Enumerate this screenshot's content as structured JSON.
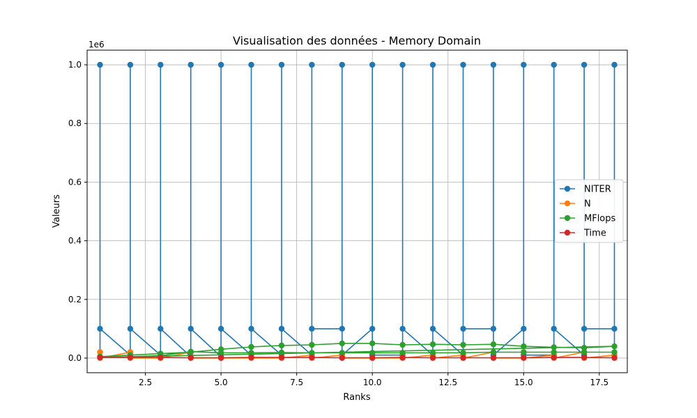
{
  "chart_data": {
    "type": "line",
    "title": "Visualisation des données - Memory Domain",
    "xlabel": "Ranks",
    "ylabel": "Valeurs",
    "y_offset_label": "1e6",
    "xlim": [
      0.575,
      18.425
    ],
    "ylim": [
      -0.05,
      1.05
    ],
    "x_ticks": [
      2.5,
      5.0,
      7.5,
      10.0,
      12.5,
      15.0,
      17.5
    ],
    "x_tick_labels": [
      "2.5",
      "5.0",
      "7.5",
      "10.0",
      "12.5",
      "15.0",
      "17.5"
    ],
    "y_ticks": [
      0.0,
      0.2,
      0.4,
      0.6,
      0.8,
      1.0
    ],
    "y_tick_labels": [
      "0.0",
      "0.2",
      "0.4",
      "0.6",
      "0.8",
      "1.0"
    ],
    "grid": true,
    "legend_position": "center-right",
    "series": [
      {
        "name": "NITER",
        "color": "#1f77b4",
        "x": [
          1,
          1,
          1,
          2,
          2,
          2,
          3,
          3,
          3,
          4,
          4,
          4,
          5,
          5,
          5,
          6,
          6,
          6,
          7,
          7,
          7,
          8,
          8,
          8,
          9,
          9,
          9,
          10,
          10,
          10,
          11,
          11,
          11,
          12,
          12,
          12,
          13,
          13,
          13,
          14,
          14,
          14,
          15,
          15,
          15,
          16,
          16,
          16,
          17,
          17,
          17,
          18,
          18,
          18
        ],
        "y": [
          0.005,
          1.0,
          0.1,
          0.01,
          1.0,
          0.1,
          0.01,
          1.0,
          0.1,
          0.005,
          1.0,
          0.1,
          0.005,
          1.0,
          0.1,
          0.01,
          1.0,
          0.1,
          0.01,
          1.0,
          0.1,
          0.01,
          1.0,
          0.1,
          0.1,
          1.0,
          0.01,
          0.1,
          1.0,
          0.01,
          0.01,
          1.0,
          0.1,
          0.01,
          1.0,
          0.1,
          0.01,
          1.0,
          0.1,
          0.1,
          1.0,
          0.01,
          0.1,
          1.0,
          0.01,
          0.01,
          1.0,
          0.1,
          0.01,
          1.0,
          0.1,
          0.1,
          1.0,
          0.01
        ]
      },
      {
        "name": "N",
        "color": "#ff7f0e",
        "x": [
          1,
          1,
          1,
          2,
          2,
          2,
          3,
          3,
          3,
          4,
          4,
          4,
          5,
          5,
          5,
          6,
          6,
          6,
          7,
          7,
          7,
          8,
          8,
          8,
          9,
          9,
          9,
          10,
          10,
          10,
          11,
          11,
          11,
          12,
          12,
          12,
          13,
          13,
          13,
          14,
          14,
          14,
          15,
          15,
          15,
          16,
          16,
          16,
          17,
          17,
          17,
          18,
          18,
          18
        ],
        "y": [
          0.02,
          0.02,
          0.0,
          0.02,
          0.02,
          0.0,
          0.0,
          0.0,
          0.0,
          0.02,
          0.02,
          0.0,
          0.0,
          0.0,
          0.0,
          0.0,
          0.005,
          0.0,
          0.0,
          0.005,
          0.0,
          0.01,
          0.01,
          0.0,
          0.01,
          0.01,
          0.0,
          0.0,
          0.0,
          0.0,
          0.0,
          0.005,
          0.0,
          0.01,
          0.01,
          0.0,
          0.01,
          0.0,
          0.0,
          0.02,
          0.02,
          0.0,
          0.0,
          0.02,
          0.0,
          0.01,
          0.01,
          0.0,
          0.02,
          0.02,
          0.0,
          0.01,
          0.01,
          0.0
        ]
      },
      {
        "name": "MFlops",
        "color": "#2ca02c",
        "x": [
          1,
          2,
          3,
          4,
          5,
          6,
          7,
          8,
          9,
          10,
          11,
          12,
          13,
          14,
          15,
          16,
          17,
          18,
          1,
          2,
          3,
          4,
          5,
          6,
          7,
          8,
          9,
          10,
          11,
          12,
          13,
          14,
          15,
          16,
          17,
          18
        ],
        "y": [
          0.005,
          0.01,
          0.015,
          0.02,
          0.03,
          0.038,
          0.043,
          0.045,
          0.05,
          0.05,
          0.045,
          0.047,
          0.045,
          0.047,
          0.04,
          0.037,
          0.035,
          0.04,
          0.002,
          0.005,
          0.008,
          0.022,
          0.018,
          0.018,
          0.019,
          0.018,
          0.018,
          0.018,
          0.018,
          0.018,
          0.018,
          0.02,
          0.02,
          0.02,
          0.02,
          0.02
        ]
      },
      {
        "name": "Time",
        "color": "#d62728",
        "x": [
          1,
          2,
          3,
          4,
          5,
          6,
          7,
          8,
          9,
          10,
          11,
          12,
          13,
          14,
          15,
          16,
          17,
          18
        ],
        "y": [
          0.002,
          0.002,
          0.002,
          0.001,
          0.001,
          0.002,
          0.002,
          0.002,
          0.001,
          0.001,
          0.002,
          0.001,
          0.001,
          0.001,
          0.001,
          0.002,
          0.002,
          0.001
        ]
      }
    ]
  }
}
